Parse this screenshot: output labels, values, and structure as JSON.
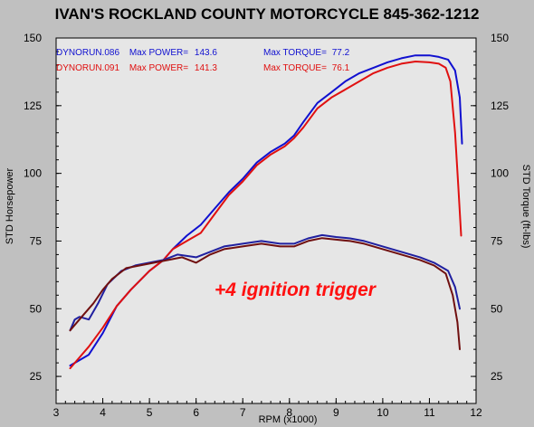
{
  "chart_data": {
    "type": "line",
    "title": "IVAN'S ROCKLAND COUNTY MOTORCYCLE 845-362-1212",
    "xlabel": "RPM (x1000)",
    "ylabel": "STD Horsepower",
    "y2label": "STD Torque (ft-lbs)",
    "xlim": [
      3,
      12
    ],
    "ylim": [
      15,
      150
    ],
    "x_ticks": [
      "3",
      "4",
      "5",
      "6",
      "7",
      "8",
      "9",
      "10",
      "11",
      "12"
    ],
    "y_ticks": [
      "25",
      "50",
      "75",
      "100",
      "125",
      "150"
    ],
    "y2_ticks": [
      "25",
      "50",
      "75",
      "100",
      "125",
      "150"
    ],
    "annotation": "+4 ignition trigger",
    "grid": false,
    "legend": [
      {
        "run": "DYNORUN.086",
        "power_label": "Max POWER=",
        "power": "143.6",
        "torque_label": "Max TORQUE=",
        "torque": "77.2",
        "color": "#1010d0"
      },
      {
        "run": "DYNORUN.091",
        "power_label": "Max POWER=",
        "power": "141.3",
        "torque_label": "Max TORQUE=",
        "torque": "76.1",
        "color": "#e01010"
      }
    ],
    "series": [
      {
        "kind": "power",
        "color": "#1010d0",
        "points": [
          [
            3.3,
            29
          ],
          [
            3.5,
            31
          ],
          [
            3.7,
            33
          ],
          [
            4.0,
            41
          ],
          [
            4.3,
            51
          ],
          [
            4.6,
            57
          ],
          [
            5.0,
            64
          ],
          [
            5.3,
            68
          ],
          [
            5.5,
            72
          ],
          [
            5.8,
            77
          ],
          [
            6.1,
            81
          ],
          [
            6.4,
            87
          ],
          [
            6.7,
            93
          ],
          [
            7.0,
            98
          ],
          [
            7.3,
            104
          ],
          [
            7.6,
            108
          ],
          [
            7.9,
            111
          ],
          [
            8.1,
            114
          ],
          [
            8.3,
            119
          ],
          [
            8.6,
            126
          ],
          [
            8.9,
            130
          ],
          [
            9.2,
            134
          ],
          [
            9.5,
            137
          ],
          [
            9.8,
            139
          ],
          [
            10.1,
            141
          ],
          [
            10.4,
            142.5
          ],
          [
            10.7,
            143.6
          ],
          [
            11.0,
            143.6
          ],
          [
            11.2,
            143
          ],
          [
            11.4,
            142
          ],
          [
            11.55,
            138
          ],
          [
            11.65,
            128
          ],
          [
            11.7,
            111
          ]
        ]
      },
      {
        "kind": "power",
        "color": "#e01010",
        "points": [
          [
            3.3,
            28
          ],
          [
            3.5,
            32
          ],
          [
            3.7,
            36
          ],
          [
            4.0,
            43
          ],
          [
            4.3,
            51
          ],
          [
            4.6,
            57
          ],
          [
            5.0,
            64
          ],
          [
            5.3,
            68
          ],
          [
            5.5,
            72
          ],
          [
            5.8,
            75
          ],
          [
            6.1,
            78
          ],
          [
            6.4,
            85
          ],
          [
            6.7,
            92
          ],
          [
            7.0,
            97
          ],
          [
            7.3,
            103
          ],
          [
            7.6,
            107
          ],
          [
            7.9,
            110
          ],
          [
            8.1,
            113
          ],
          [
            8.3,
            117
          ],
          [
            8.6,
            124
          ],
          [
            8.9,
            128
          ],
          [
            9.2,
            131
          ],
          [
            9.5,
            134
          ],
          [
            9.8,
            137
          ],
          [
            10.1,
            139
          ],
          [
            10.4,
            140.5
          ],
          [
            10.7,
            141.3
          ],
          [
            11.0,
            141
          ],
          [
            11.2,
            140.5
          ],
          [
            11.35,
            139
          ],
          [
            11.45,
            134
          ],
          [
            11.55,
            115
          ],
          [
            11.62,
            95
          ],
          [
            11.68,
            77
          ]
        ]
      },
      {
        "kind": "torque",
        "color": "#2020a0",
        "points": [
          [
            3.3,
            42
          ],
          [
            3.4,
            46
          ],
          [
            3.5,
            47
          ],
          [
            3.7,
            46
          ],
          [
            3.9,
            52
          ],
          [
            4.1,
            59
          ],
          [
            4.4,
            64
          ],
          [
            4.7,
            66
          ],
          [
            5.0,
            67
          ],
          [
            5.3,
            68
          ],
          [
            5.6,
            70
          ],
          [
            6.0,
            69
          ],
          [
            6.3,
            71
          ],
          [
            6.6,
            73
          ],
          [
            7.0,
            74
          ],
          [
            7.4,
            75
          ],
          [
            7.8,
            74
          ],
          [
            8.1,
            74
          ],
          [
            8.4,
            76
          ],
          [
            8.7,
            77.2
          ],
          [
            9.0,
            76.5
          ],
          [
            9.3,
            76
          ],
          [
            9.6,
            75
          ],
          [
            10.0,
            73
          ],
          [
            10.4,
            71
          ],
          [
            10.8,
            69
          ],
          [
            11.1,
            67
          ],
          [
            11.4,
            64
          ],
          [
            11.55,
            58
          ],
          [
            11.65,
            50
          ]
        ]
      },
      {
        "kind": "torque",
        "color": "#701010",
        "points": [
          [
            3.3,
            42
          ],
          [
            3.4,
            44
          ],
          [
            3.6,
            48
          ],
          [
            3.8,
            52
          ],
          [
            4.0,
            57
          ],
          [
            4.2,
            61
          ],
          [
            4.5,
            65
          ],
          [
            4.8,
            66
          ],
          [
            5.1,
            67
          ],
          [
            5.4,
            68
          ],
          [
            5.7,
            69
          ],
          [
            6.0,
            67
          ],
          [
            6.3,
            70
          ],
          [
            6.6,
            72
          ],
          [
            7.0,
            73
          ],
          [
            7.4,
            74
          ],
          [
            7.8,
            73
          ],
          [
            8.1,
            73
          ],
          [
            8.4,
            75
          ],
          [
            8.7,
            76.1
          ],
          [
            9.0,
            75.5
          ],
          [
            9.3,
            75
          ],
          [
            9.6,
            74
          ],
          [
            10.0,
            72
          ],
          [
            10.4,
            70
          ],
          [
            10.8,
            68
          ],
          [
            11.1,
            66
          ],
          [
            11.35,
            63
          ],
          [
            11.5,
            55
          ],
          [
            11.6,
            45
          ],
          [
            11.65,
            35
          ]
        ]
      }
    ]
  }
}
